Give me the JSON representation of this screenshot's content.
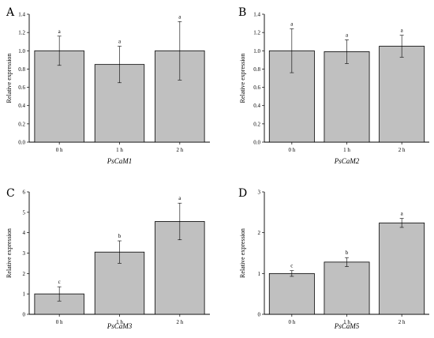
{
  "chart_data": [
    {
      "type": "bar",
      "panel": "A",
      "categories": [
        "0 h",
        "1 h",
        "2 h"
      ],
      "values": [
        1.0,
        0.85,
        1.0
      ],
      "errors": [
        0.16,
        0.2,
        0.32
      ],
      "significance": [
        "a",
        "a",
        "a"
      ],
      "xlabel": "PsCaM1",
      "ylabel": "Relative expression",
      "ylim": [
        0,
        1.4
      ],
      "yticks": [
        0.0,
        0.2,
        0.4,
        0.6,
        0.8,
        1.0,
        1.2,
        1.4
      ],
      "ytick_labels": [
        "0.0",
        "0.2",
        "0.4",
        "0.6",
        "0.8",
        "1.0",
        "1.2",
        "1.4"
      ]
    },
    {
      "type": "bar",
      "panel": "B",
      "categories": [
        "0 h",
        "1 h",
        "2 h"
      ],
      "values": [
        1.0,
        0.99,
        1.05
      ],
      "errors": [
        0.24,
        0.13,
        0.12
      ],
      "significance": [
        "a",
        "a",
        "a"
      ],
      "xlabel": "PsCaM2",
      "ylabel": "Relative expression",
      "ylim": [
        0,
        1.4
      ],
      "yticks": [
        0.0,
        0.2,
        0.4,
        0.6,
        0.8,
        1.0,
        1.2,
        1.4
      ],
      "ytick_labels": [
        "0.0",
        "0.2",
        "0.4",
        "0.6",
        "0.8",
        "1.0",
        "1.2",
        "1.4"
      ]
    },
    {
      "type": "bar",
      "panel": "C",
      "categories": [
        "0 h",
        "1 h",
        "2 h"
      ],
      "values": [
        1.0,
        3.05,
        4.55
      ],
      "errors": [
        0.35,
        0.55,
        0.9
      ],
      "significance": [
        "c",
        "b",
        "a"
      ],
      "xlabel": "PsCaM3",
      "ylabel": "Relative expression",
      "ylim": [
        0,
        6
      ],
      "yticks": [
        0,
        1,
        2,
        3,
        4,
        5,
        6
      ],
      "ytick_labels": [
        "0",
        "1",
        "2",
        "3",
        "4",
        "5",
        "6"
      ]
    },
    {
      "type": "bar",
      "panel": "D",
      "categories": [
        "0 h",
        "1 h",
        "2 h"
      ],
      "values": [
        1.0,
        1.28,
        2.24
      ],
      "errors": [
        0.07,
        0.11,
        0.11
      ],
      "significance": [
        "c",
        "b",
        "a"
      ],
      "xlabel": "PsCaM5",
      "ylabel": "Relative expression",
      "ylim": [
        0,
        3
      ],
      "yticks": [
        0,
        1,
        2,
        3
      ],
      "ytick_labels": [
        "0",
        "1",
        "2",
        "3"
      ]
    }
  ]
}
